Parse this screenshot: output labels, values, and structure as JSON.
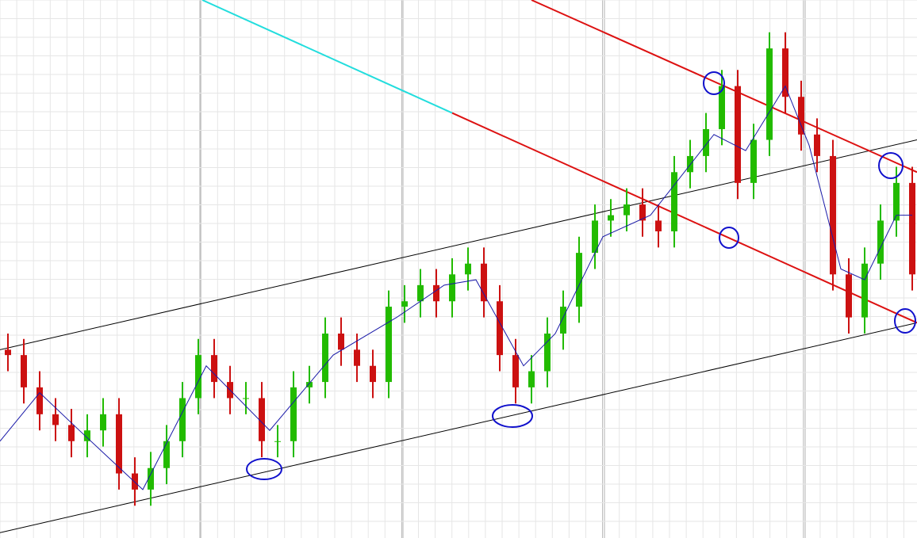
{
  "chart_data": {
    "type": "candlestick",
    "grid": true,
    "xlim": [
      0,
      57.8
    ],
    "ylim": [
      0,
      100
    ],
    "up_color": "#22bb00",
    "down_color": "#cc1111",
    "open": [
      35,
      34,
      28,
      23,
      21,
      18,
      20,
      23,
      12,
      9,
      13,
      18,
      26,
      34,
      29,
      26,
      26,
      18,
      18,
      28,
      29,
      38,
      35,
      32,
      29,
      43,
      44,
      47,
      44,
      49,
      51,
      44,
      34,
      28,
      31,
      38,
      43,
      53,
      59,
      60,
      62,
      59,
      57,
      68,
      71,
      76,
      84,
      66,
      74,
      91,
      82,
      75,
      71,
      49,
      41,
      51,
      59,
      66
    ],
    "high": [
      38,
      37,
      31,
      26,
      24,
      23,
      26,
      26,
      15,
      16,
      21,
      29,
      37,
      37,
      32,
      29,
      29,
      21,
      31,
      32,
      41,
      41,
      38,
      35,
      46,
      47,
      50,
      50,
      52,
      54,
      54,
      47,
      37,
      34,
      41,
      46,
      56,
      62,
      63,
      65,
      65,
      62,
      71,
      74,
      79,
      87,
      87,
      77,
      94,
      94,
      85,
      78,
      74,
      52,
      54,
      62,
      69,
      69
    ],
    "low": [
      31,
      25,
      20,
      18,
      15,
      15,
      17,
      9,
      6,
      6,
      10,
      15,
      23,
      26,
      23,
      23,
      15,
      15,
      15,
      25,
      26,
      32,
      29,
      26,
      26,
      40,
      41,
      41,
      41,
      46,
      41,
      31,
      25,
      25,
      28,
      35,
      40,
      50,
      56,
      57,
      56,
      54,
      54,
      65,
      68,
      73,
      63,
      63,
      71,
      79,
      72,
      68,
      46,
      38,
      38,
      48,
      56,
      46
    ],
    "close": [
      34,
      28,
      23,
      21,
      18,
      20,
      23,
      12,
      9,
      13,
      18,
      26,
      34,
      29,
      26,
      26,
      18,
      18,
      28,
      29,
      38,
      35,
      32,
      29,
      43,
      44,
      47,
      44,
      49,
      51,
      44,
      34,
      28,
      31,
      38,
      43,
      53,
      59,
      60,
      62,
      59,
      57,
      68,
      71,
      76,
      84,
      66,
      74,
      91,
      82,
      75,
      71,
      49,
      41,
      51,
      59,
      66,
      49
    ],
    "moving_average": {
      "color": "#1a1aa8",
      "x": [
        0,
        2.5,
        5,
        9,
        13,
        17,
        21,
        25,
        28,
        30,
        33,
        35,
        38,
        41,
        45,
        47,
        49.5,
        51,
        53,
        54.5,
        56.5,
        57.5
      ],
      "values": [
        18,
        27,
        20,
        9,
        32,
        20,
        34,
        41,
        47,
        48,
        32,
        38,
        56,
        60,
        75,
        72,
        84,
        73,
        50,
        48,
        60,
        60
      ]
    },
    "lines": [
      {
        "color": "#000000",
        "x": [
          0,
          57.8
        ],
        "values": [
          35,
          74
        ]
      },
      {
        "color": "#000000",
        "x": [
          0,
          57.8
        ],
        "values": [
          1,
          40
        ]
      },
      {
        "color": "#dd1111",
        "x": [
          33.5,
          57.8
        ],
        "values": [
          100,
          68
        ]
      },
      {
        "color": "#dd1111",
        "x": [
          28.5,
          57.8
        ],
        "values": [
          79,
          40
        ]
      },
      {
        "color": "#22dddd",
        "x": [
          12.75,
          28.5
        ],
        "values": [
          100,
          79
        ]
      }
    ]
  }
}
